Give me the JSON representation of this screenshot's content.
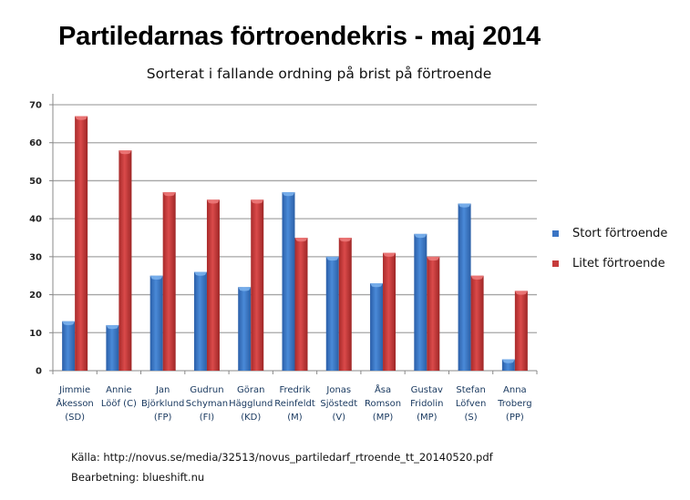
{
  "chart_data": {
    "type": "bar",
    "title": "Partiledarnas förtroendekris - maj 2014",
    "subtitle": "Sorterat i fallande ordning på brist på förtroende",
    "xlabel": "",
    "ylabel": "",
    "ylim": [
      0,
      70
    ],
    "yticks": [
      "0",
      "10",
      "20",
      "30",
      "40",
      "50",
      "60",
      "70"
    ],
    "grid": true,
    "legend_position": "right",
    "categories": [
      [
        "Jimmie",
        "Åkesson",
        "(SD)"
      ],
      [
        "Annie",
        "Lööf (C)"
      ],
      [
        "Jan",
        "Björklund",
        "(FP)"
      ],
      [
        "Gudrun",
        "Schyman",
        "(FI)"
      ],
      [
        "Göran",
        "Hägglund",
        "(KD)"
      ],
      [
        "Fredrik",
        "Reinfeldt",
        "(M)"
      ],
      [
        "Jonas",
        "Sjöstedt",
        "(V)"
      ],
      [
        "Åsa",
        "Romson",
        "(MP)"
      ],
      [
        "Gustav",
        "Fridolin",
        "(MP)"
      ],
      [
        "Stefan",
        "Löfven",
        "(S)"
      ],
      [
        "Anna",
        "Troberg",
        "(PP)"
      ]
    ],
    "series": [
      {
        "name": "Stort förtroende",
        "color": "#3A74C4",
        "values": [
          13,
          12,
          25,
          26,
          22,
          47,
          30,
          23,
          36,
          44,
          3
        ]
      },
      {
        "name": "Litet förtroende",
        "color": "#C63B3B",
        "values": [
          67,
          58,
          47,
          45,
          45,
          35,
          35,
          31,
          30,
          25,
          21
        ]
      }
    ]
  },
  "footer": {
    "source": "Källa: http://novus.se/media/32513/novus_partiledarf_rtroende_tt_20140520.pdf",
    "credit": "Bearbetning: blueshift.nu"
  }
}
